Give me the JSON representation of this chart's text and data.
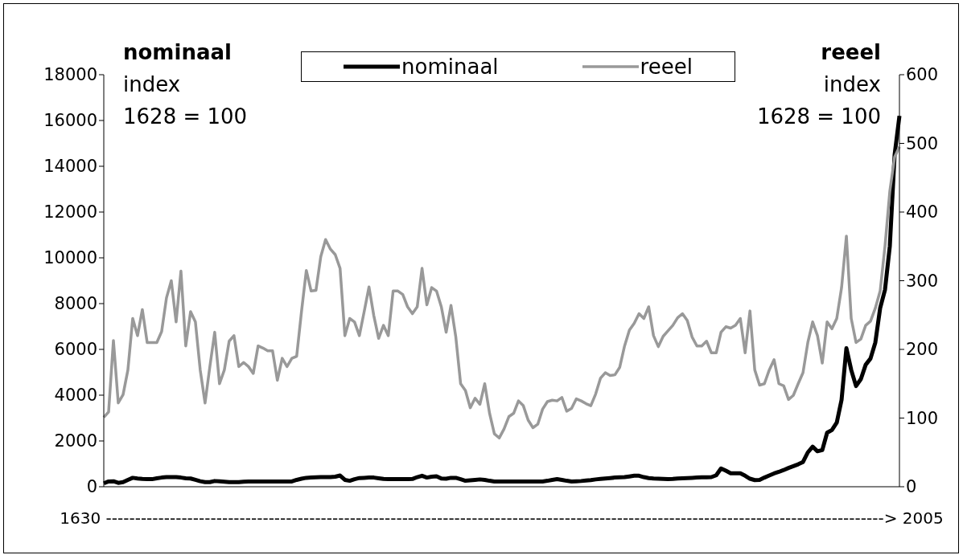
{
  "chart_data": {
    "type": "line",
    "xlabel": "1630 --------------------------------------------------------------------------------------------------------------------------------------> 2005",
    "ylabel": "nominaal\nindex\n1628 = 100",
    "y2label": "reeel\nindex\n1628 = 100",
    "categories": [
      null,
      null,
      null,
      null,
      null,
      null,
      null,
      null,
      null,
      null,
      null,
      null,
      null,
      null,
      null,
      null,
      null,
      null,
      null,
      null,
      null,
      null,
      null,
      null,
      null,
      null,
      null,
      null,
      null,
      null,
      null,
      null,
      null,
      null,
      null,
      null,
      null,
      null,
      null,
      null,
      null,
      null,
      null,
      null,
      null,
      null,
      null,
      null,
      null,
      null,
      null,
      null,
      null,
      null,
      null,
      null,
      null,
      null,
      null,
      null,
      null,
      null,
      null,
      null,
      null,
      null,
      null,
      null,
      null,
      null,
      null,
      null,
      null,
      null,
      null,
      null,
      null,
      null,
      null,
      null,
      null,
      null,
      null,
      null,
      null,
      null,
      null,
      null,
      null,
      null,
      null,
      null,
      null,
      null,
      null,
      null,
      null,
      null,
      null,
      null,
      null,
      null,
      null,
      null,
      null,
      null,
      null,
      null,
      null,
      null,
      null,
      null,
      null,
      null,
      null,
      null,
      null,
      null,
      null,
      null,
      null,
      null,
      null,
      null,
      null,
      null,
      null,
      null,
      null,
      null,
      null,
      null,
      null,
      null,
      null,
      null,
      null,
      null,
      null,
      null,
      null,
      null,
      null,
      null,
      null,
      null,
      null,
      null,
      null,
      null,
      null,
      null,
      null,
      null,
      null,
      null,
      null,
      null,
      null,
      null,
      null,
      null,
      null,
      null,
      null,
      null
    ],
    "series": [
      {
        "name": "nominaal",
        "color": "#000000",
        "values": [
          150,
          230,
          240,
          170,
          200,
          300,
          390,
          360,
          340,
          330,
          330,
          370,
          400,
          420,
          420,
          420,
          400,
          370,
          360,
          300,
          240,
          200,
          200,
          250,
          240,
          220,
          200,
          200,
          200,
          220,
          230,
          230,
          230,
          230,
          230,
          230,
          230,
          230,
          230,
          230,
          300,
          350,
          390,
          400,
          410,
          420,
          420,
          420,
          440,
          490,
          300,
          260,
          330,
          380,
          390,
          400,
          400,
          370,
          340,
          330,
          330,
          330,
          330,
          330,
          340,
          420,
          480,
          400,
          440,
          460,
          360,
          350,
          390,
          390,
          330,
          260,
          280,
          300,
          320,
          300,
          260,
          230,
          230,
          230,
          230,
          230,
          230,
          230,
          230,
          230,
          230,
          230,
          260,
          300,
          330,
          300,
          260,
          230,
          240,
          250,
          270,
          290,
          320,
          340,
          360,
          380,
          400,
          410,
          420,
          450,
          480,
          480,
          420,
          380,
          360,
          350,
          340,
          330,
          340,
          360,
          370,
          380,
          390,
          400,
          410,
          410,
          420,
          500,
          800,
          700,
          590,
          590,
          590,
          480,
          350,
          290,
          300,
          400,
          490,
          580,
          650,
          730,
          820,
          900,
          980,
          1080,
          1500,
          1750,
          1550,
          1600,
          2360,
          2480,
          2800,
          3800,
          6050,
          5100,
          4400,
          4700,
          5330,
          5600,
          6300,
          7800,
          8600,
          10500,
          14500,
          16200
        ]
      },
      {
        "name": "reeel",
        "color": "#999999",
        "axis": "y2",
        "values": [
          101,
          109,
          213,
          122,
          134,
          170,
          245,
          220,
          258,
          210,
          210,
          210,
          226,
          275,
          300,
          240,
          314,
          205,
          255,
          240,
          170,
          122,
          175,
          225,
          150,
          170,
          212,
          220,
          175,
          181,
          175,
          165,
          205,
          202,
          198,
          198,
          155,
          187,
          175,
          187,
          190,
          255,
          315,
          285,
          286,
          335,
          360,
          346,
          338,
          318,
          220,
          245,
          240,
          220,
          255,
          291,
          249,
          216,
          235,
          220,
          285,
          285,
          280,
          262,
          252,
          262,
          318,
          265,
          290,
          285,
          262,
          225,
          264,
          218,
          150,
          140,
          115,
          129,
          120,
          150,
          107,
          77,
          71,
          84,
          102,
          107,
          125,
          118,
          97,
          86,
          91,
          113,
          124,
          126,
          125,
          130,
          110,
          114,
          128,
          125,
          121,
          118,
          135,
          158,
          166,
          162,
          163,
          174,
          205,
          228,
          238,
          252,
          245,
          262,
          220,
          204,
          219,
          227,
          235,
          246,
          252,
          242,
          218,
          205,
          205,
          212,
          195,
          195,
          225,
          233,
          231,
          235,
          245,
          195,
          256,
          170,
          148,
          150,
          170,
          185,
          150,
          147,
          127,
          133,
          150,
          166,
          210,
          240,
          220,
          180,
          240,
          230,
          245,
          290,
          365,
          245,
          210,
          215,
          235,
          241,
          260,
          285,
          350,
          430,
          480,
          495
        ]
      }
    ],
    "ylim": [
      0,
      18000
    ],
    "yticks": [
      0,
      2000,
      4000,
      6000,
      8000,
      10000,
      12000,
      14000,
      16000,
      18000
    ],
    "y2lim": [
      0,
      600
    ],
    "y2ticks": [
      0,
      100,
      200,
      300,
      400,
      500,
      600
    ],
    "grid": false,
    "legend": "top",
    "marker": "none",
    "line_style": "solid"
  }
}
